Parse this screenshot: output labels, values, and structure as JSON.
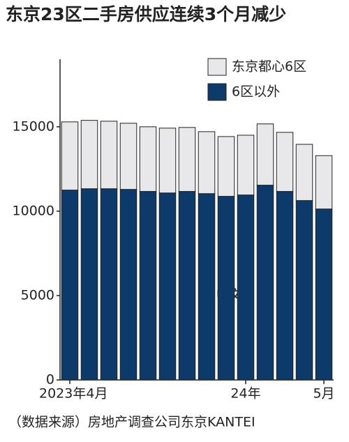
{
  "chart_data": {
    "type": "stacked_bar",
    "title": "东京23区二手房供应连续3个月减少",
    "source": "（数据来源）房地产调查公司东京KANTEI",
    "watermark": "中文网",
    "categories": [
      "2023年4月",
      null,
      null,
      null,
      null,
      null,
      null,
      null,
      null,
      "24年",
      null,
      null,
      null,
      "5月"
    ],
    "series": [
      {
        "name": "6区以外",
        "color": "#0b3a6b",
        "values": [
          11250,
          11330,
          11330,
          11290,
          11170,
          11080,
          11170,
          11040,
          10880,
          10960,
          11540,
          11170,
          10630,
          10130
        ]
      },
      {
        "name": "东京都心6区",
        "color": "#e8e8ea",
        "values": [
          4040,
          4050,
          4000,
          3920,
          3830,
          3840,
          3790,
          3670,
          3540,
          3540,
          3630,
          3500,
          3330,
          3160
        ]
      }
    ],
    "ylim": [
      0,
      19000
    ],
    "yticks": [
      0,
      5000,
      10000,
      15000
    ]
  }
}
